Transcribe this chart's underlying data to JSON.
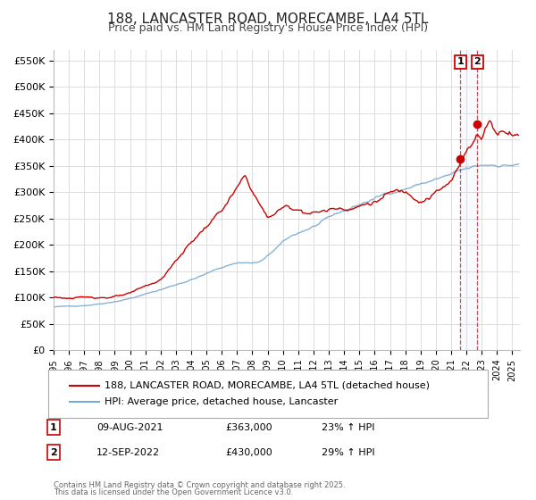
{
  "title": "188, LANCASTER ROAD, MORECAMBE, LA4 5TL",
  "subtitle": "Price paid vs. HM Land Registry's House Price Index (HPI)",
  "ylim": [
    0,
    570000
  ],
  "xlim_start": 1995.0,
  "xlim_end": 2025.5,
  "yticks": [
    0,
    50000,
    100000,
    150000,
    200000,
    250000,
    300000,
    350000,
    400000,
    450000,
    500000,
    550000
  ],
  "ytick_labels": [
    "£0",
    "£50K",
    "£100K",
    "£150K",
    "£200K",
    "£250K",
    "£300K",
    "£350K",
    "£400K",
    "£450K",
    "£500K",
    "£550K"
  ],
  "xtick_years": [
    1995,
    1996,
    1997,
    1998,
    1999,
    2000,
    2001,
    2002,
    2003,
    2004,
    2005,
    2006,
    2007,
    2008,
    2009,
    2010,
    2011,
    2012,
    2013,
    2014,
    2015,
    2016,
    2017,
    2018,
    2019,
    2020,
    2021,
    2022,
    2023,
    2024,
    2025
  ],
  "red_line_color": "#cc0000",
  "blue_line_color": "#7aaad0",
  "grid_color": "#dddddd",
  "background_color": "#ffffff",
  "legend_label_red": "188, LANCASTER ROAD, MORECAMBE, LA4 5TL (detached house)",
  "legend_label_blue": "HPI: Average price, detached house, Lancaster",
  "transaction_1_x": 2021.609,
  "transaction_1_y": 363000,
  "transaction_1_label": "1",
  "transaction_1_date": "09-AUG-2021",
  "transaction_1_price": "£363,000",
  "transaction_1_hpi": "23% ↑ HPI",
  "transaction_2_x": 2022.706,
  "transaction_2_y": 430000,
  "transaction_2_label": "2",
  "transaction_2_date": "12-SEP-2022",
  "transaction_2_price": "£430,000",
  "transaction_2_hpi": "29% ↑ HPI",
  "footer_line1": "Contains HM Land Registry data © Crown copyright and database right 2025.",
  "footer_line2": "This data is licensed under the Open Government Licence v3.0.",
  "title_fontsize": 11,
  "subtitle_fontsize": 9,
  "tick_fontsize": 8,
  "legend_fontsize": 8
}
